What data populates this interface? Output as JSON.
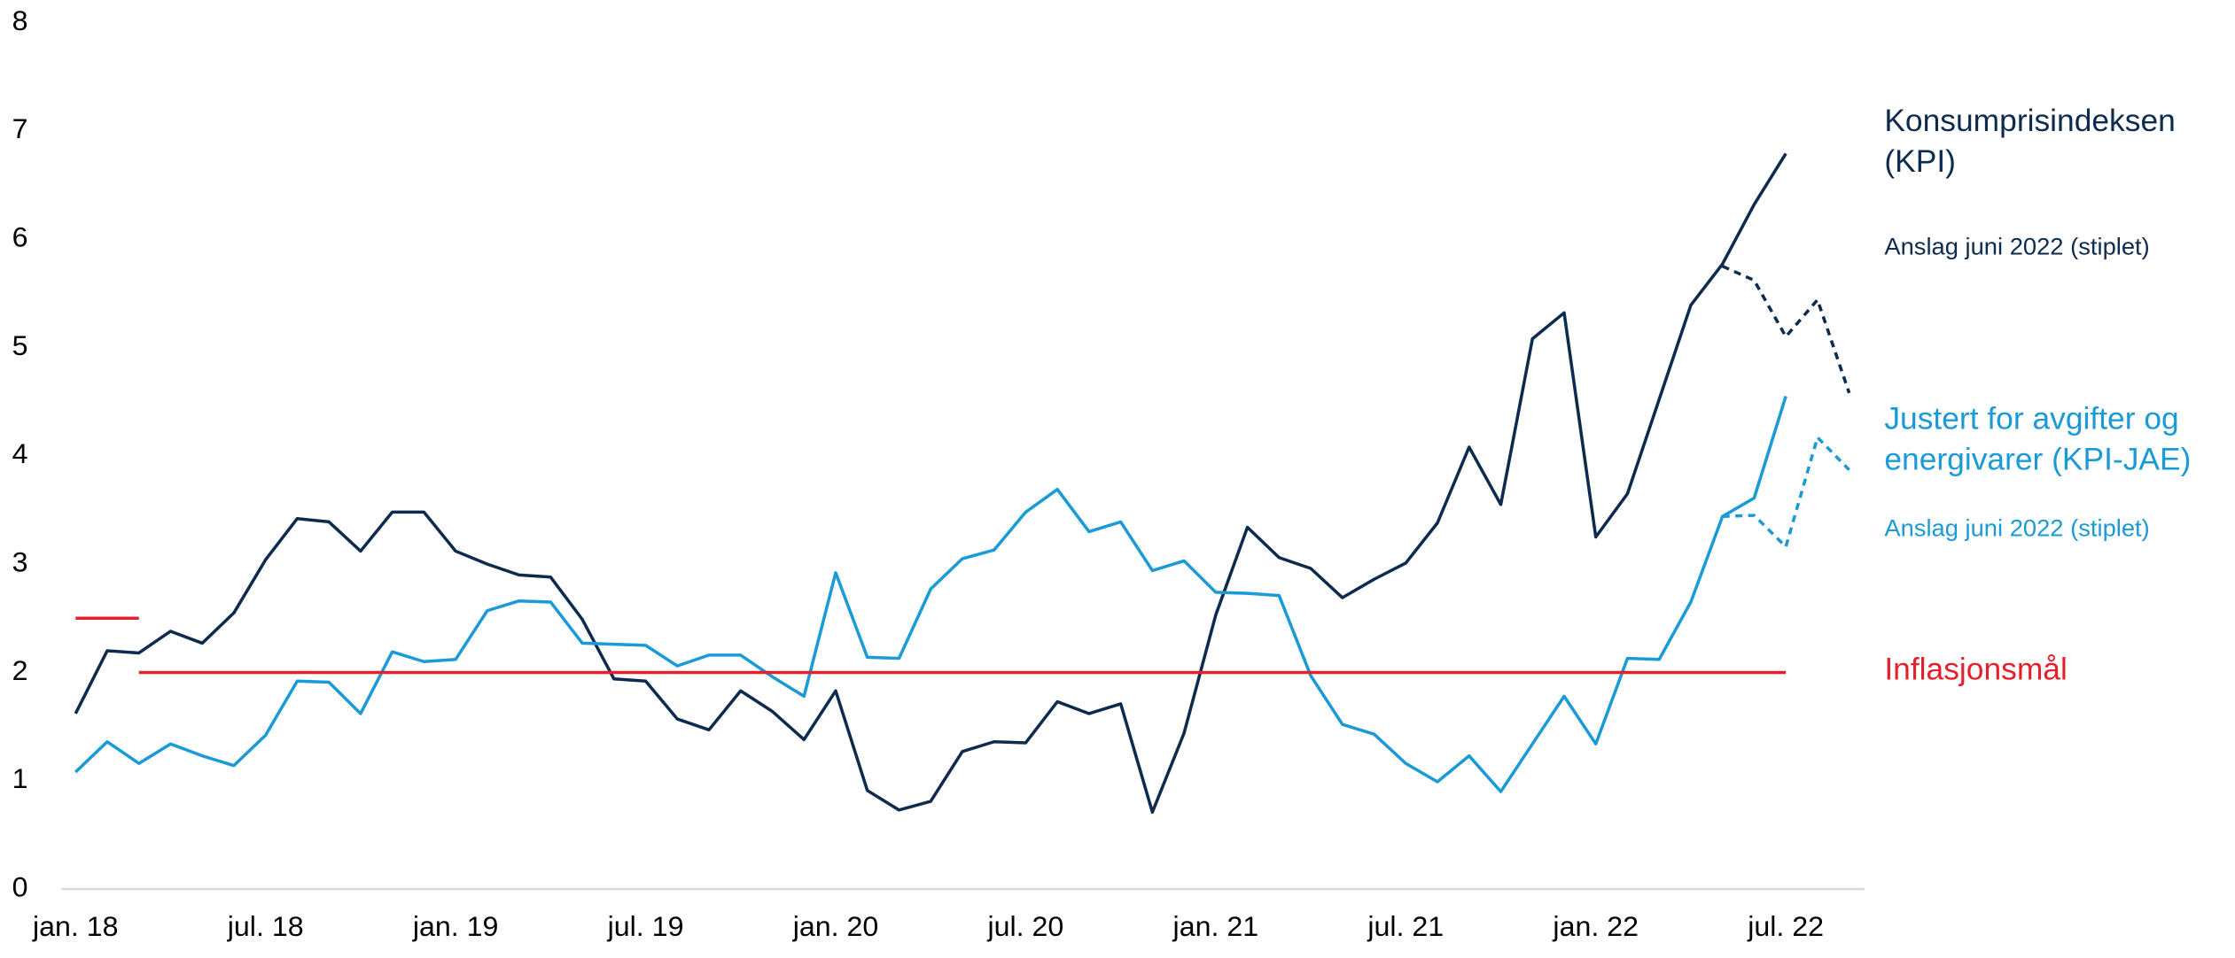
{
  "chart_data": {
    "type": "line",
    "categories": [
      "jan. 18",
      null,
      null,
      null,
      null,
      null,
      "jul. 18",
      null,
      null,
      null,
      null,
      null,
      "jan. 19",
      null,
      null,
      null,
      null,
      null,
      "jul. 19",
      null,
      null,
      null,
      null,
      null,
      "jan. 20",
      null,
      null,
      null,
      null,
      null,
      "jul. 20",
      null,
      null,
      null,
      null,
      null,
      "jan. 21",
      null,
      null,
      null,
      null,
      null,
      "jul. 21",
      null,
      null,
      null,
      null,
      null,
      "jan. 22",
      null,
      null,
      null,
      null,
      null,
      "jul. 22",
      null,
      null
    ],
    "ylim": [
      0,
      8
    ],
    "yticks": [
      0,
      1,
      2,
      3,
      4,
      5,
      6,
      7,
      8
    ],
    "series": [
      {
        "name": "Konsumprisindeksen (KPI)",
        "color": "#0d2b4e",
        "values": [
          1.62,
          2.2,
          2.18,
          2.38,
          2.27,
          2.55,
          3.04,
          3.42,
          3.39,
          3.12,
          3.48,
          3.48,
          3.12,
          3.0,
          2.9,
          2.88,
          2.49,
          1.94,
          1.92,
          1.57,
          1.47,
          1.83,
          1.64,
          1.38,
          1.83,
          0.91,
          0.73,
          0.81,
          1.27,
          1.36,
          1.35,
          1.73,
          1.62,
          1.71,
          0.71,
          1.44,
          2.53,
          3.34,
          3.06,
          2.96,
          2.69,
          2.86,
          3.01,
          3.38,
          4.08,
          3.55,
          5.08,
          5.32,
          3.25,
          3.65,
          4.52,
          5.39,
          5.77,
          6.32,
          6.79,
          null,
          null
        ]
      },
      {
        "name": "Anslag juni 2022 (stiplet)",
        "color": "#0d2b4e",
        "dashed": true,
        "values": [
          null,
          null,
          null,
          null,
          null,
          null,
          null,
          null,
          null,
          null,
          null,
          null,
          null,
          null,
          null,
          null,
          null,
          null,
          null,
          null,
          null,
          null,
          null,
          null,
          null,
          null,
          null,
          null,
          null,
          null,
          null,
          null,
          null,
          null,
          null,
          null,
          null,
          null,
          null,
          null,
          null,
          null,
          null,
          null,
          null,
          null,
          null,
          null,
          null,
          null,
          null,
          null,
          5.75,
          5.62,
          5.1,
          5.44,
          4.58
        ]
      },
      {
        "name": "Justert for avgifter og energivarer (KPI-JAE)",
        "color": "#1a9ad6",
        "values": [
          1.08,
          1.36,
          1.16,
          1.34,
          1.23,
          1.14,
          1.42,
          1.92,
          1.91,
          1.62,
          2.19,
          2.1,
          2.12,
          2.57,
          2.66,
          2.65,
          2.27,
          2.26,
          2.25,
          2.06,
          2.16,
          2.16,
          1.96,
          1.78,
          2.92,
          2.14,
          2.13,
          2.77,
          3.05,
          3.13,
          3.48,
          3.69,
          3.3,
          3.39,
          2.94,
          3.03,
          2.74,
          2.73,
          2.71,
          1.97,
          1.52,
          1.43,
          1.16,
          0.99,
          1.23,
          0.9,
          1.34,
          1.78,
          1.34,
          2.13,
          2.12,
          2.65,
          3.44,
          3.61,
          4.55,
          null,
          null
        ]
      },
      {
        "name": "Anslag juni 2022 (stiplet)",
        "color": "#1a9ad6",
        "dashed": true,
        "values": [
          null,
          null,
          null,
          null,
          null,
          null,
          null,
          null,
          null,
          null,
          null,
          null,
          null,
          null,
          null,
          null,
          null,
          null,
          null,
          null,
          null,
          null,
          null,
          null,
          null,
          null,
          null,
          null,
          null,
          null,
          null,
          null,
          null,
          null,
          null,
          null,
          null,
          null,
          null,
          null,
          null,
          null,
          null,
          null,
          null,
          null,
          null,
          null,
          null,
          null,
          null,
          null,
          3.44,
          3.45,
          3.16,
          4.17,
          3.87
        ]
      },
      {
        "name": "Inflasjonsmål",
        "color": "#e4202c",
        "values": [
          null,
          null,
          2,
          2,
          2,
          2,
          2,
          2,
          2,
          2,
          2,
          2,
          2,
          2,
          2,
          2,
          2,
          2,
          2,
          2,
          2,
          2,
          2,
          2,
          2,
          2,
          2,
          2,
          2,
          2,
          2,
          2,
          2,
          2,
          2,
          2,
          2,
          2,
          2,
          2,
          2,
          2,
          2,
          2,
          2,
          2,
          2,
          2,
          2,
          2,
          2,
          2,
          2,
          2,
          2,
          null,
          null
        ]
      },
      {
        "color": "#e4202c",
        "values": [
          2.5,
          2.5,
          2.5,
          null,
          null,
          null,
          null,
          null,
          null,
          null,
          null,
          null,
          null,
          null,
          null,
          null,
          null,
          null,
          null,
          null,
          null,
          null,
          null,
          null,
          null,
          null,
          null,
          null,
          null,
          null,
          null,
          null,
          null,
          null,
          null,
          null,
          null,
          null,
          null,
          null,
          null,
          null,
          null,
          null,
          null,
          null,
          null,
          null,
          null,
          null,
          null,
          null,
          null,
          null,
          null,
          null,
          null
        ]
      }
    ]
  }
}
